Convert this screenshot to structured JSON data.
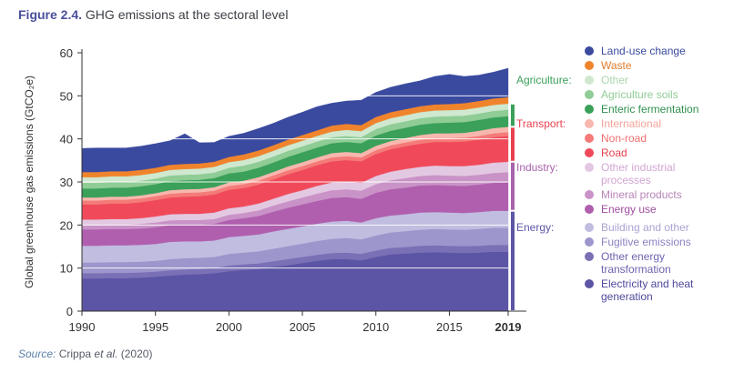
{
  "figure": {
    "number": "Figure 2.4.",
    "title": "GHG emissions at the sectoral level",
    "source_label": "Source:",
    "source_author": "Crippa",
    "source_etal": "et al.",
    "source_year": "(2020)"
  },
  "chart_data": {
    "type": "area",
    "stacked": true,
    "ylabel": "Global greenhouse gas emissions (GtCO₂e)",
    "xlabel": "",
    "ylim": [
      0,
      60
    ],
    "xlim": [
      1990,
      2019
    ],
    "yticks": [
      0,
      10,
      20,
      30,
      40,
      50,
      60
    ],
    "xticks": [
      1990,
      1995,
      2000,
      2005,
      2010,
      2015,
      2019
    ],
    "xtick_labels": [
      "1990",
      "1995",
      "2000",
      "2005",
      "2010",
      "2015",
      "2019"
    ],
    "x": [
      1990,
      1991,
      1992,
      1993,
      1994,
      1995,
      1996,
      1997,
      1998,
      1999,
      2000,
      2001,
      2002,
      2003,
      2004,
      2005,
      2006,
      2007,
      2008,
      2009,
      2010,
      2011,
      2012,
      2013,
      2014,
      2015,
      2016,
      2017,
      2018,
      2019
    ],
    "series": [
      {
        "name": "Electricity and heat generation",
        "group": "Energy",
        "color": "#5c55a5",
        "values": [
          7.6,
          7.6,
          7.7,
          7.7,
          7.8,
          8.0,
          8.3,
          8.5,
          8.6,
          8.8,
          9.3,
          9.6,
          9.8,
          10.3,
          10.7,
          11.2,
          11.7,
          12.1,
          12.1,
          11.8,
          12.6,
          13.2,
          13.4,
          13.6,
          13.7,
          13.6,
          13.5,
          13.6,
          13.8,
          13.8
        ]
      },
      {
        "name": "Other energy transformation",
        "group": "Energy",
        "color": "#7a70b6",
        "values": [
          1.2,
          1.2,
          1.2,
          1.2,
          1.2,
          1.2,
          1.2,
          1.2,
          1.2,
          1.2,
          1.3,
          1.3,
          1.3,
          1.3,
          1.4,
          1.4,
          1.4,
          1.4,
          1.5,
          1.5,
          1.5,
          1.5,
          1.5,
          1.6,
          1.6,
          1.6,
          1.6,
          1.6,
          1.6,
          1.6
        ]
      },
      {
        "name": "Fugitive emissions",
        "group": "Energy",
        "color": "#9d96cc",
        "values": [
          2.5,
          2.5,
          2.5,
          2.5,
          2.5,
          2.5,
          2.6,
          2.6,
          2.6,
          2.6,
          2.7,
          2.7,
          2.8,
          2.9,
          3.0,
          3.1,
          3.2,
          3.3,
          3.4,
          3.4,
          3.5,
          3.6,
          3.7,
          3.7,
          3.8,
          3.8,
          3.8,
          3.9,
          4.0,
          4.0
        ]
      },
      {
        "name": "Building and other",
        "group": "Energy",
        "color": "#c1bde0",
        "values": [
          3.9,
          3.9,
          3.9,
          3.9,
          3.9,
          3.9,
          4.0,
          3.9,
          3.8,
          3.8,
          3.9,
          3.9,
          3.9,
          4.0,
          4.0,
          4.0,
          4.0,
          4.0,
          4.0,
          3.9,
          4.0,
          3.9,
          3.9,
          4.0,
          3.9,
          3.9,
          3.9,
          3.9,
          3.9,
          3.9
        ]
      },
      {
        "name": "Energy use",
        "group": "Industry",
        "color": "#b05fae",
        "values": [
          3.8,
          3.8,
          3.8,
          3.8,
          3.8,
          3.9,
          3.9,
          3.9,
          3.9,
          3.9,
          4.0,
          4.1,
          4.3,
          4.6,
          4.9,
          5.1,
          5.3,
          5.5,
          5.5,
          5.5,
          5.9,
          6.1,
          6.2,
          6.3,
          6.3,
          6.3,
          6.3,
          6.4,
          6.5,
          6.6
        ]
      },
      {
        "name": "Mineral products",
        "group": "Industry",
        "color": "#c993c7",
        "values": [
          1.0,
          1.0,
          1.0,
          1.0,
          1.1,
          1.1,
          1.1,
          1.1,
          1.1,
          1.1,
          1.2,
          1.2,
          1.3,
          1.4,
          1.5,
          1.6,
          1.7,
          1.8,
          1.8,
          1.9,
          2.0,
          2.1,
          2.2,
          2.2,
          2.3,
          2.3,
          2.3,
          2.3,
          2.3,
          2.4
        ]
      },
      {
        "name": "Other industrial processes",
        "group": "Industry",
        "color": "#e3c8e2",
        "values": [
          1.3,
          1.3,
          1.3,
          1.3,
          1.3,
          1.4,
          1.4,
          1.4,
          1.4,
          1.5,
          1.5,
          1.5,
          1.6,
          1.6,
          1.7,
          1.7,
          1.8,
          1.8,
          1.8,
          1.8,
          1.9,
          2.0,
          2.1,
          2.1,
          2.2,
          2.2,
          2.3,
          2.3,
          2.4,
          2.4
        ]
      },
      {
        "name": "Road",
        "group": "Transport",
        "color": "#f04a5a",
        "values": [
          3.5,
          3.5,
          3.6,
          3.6,
          3.7,
          3.8,
          3.9,
          4.0,
          4.1,
          4.2,
          4.3,
          4.3,
          4.4,
          4.5,
          4.6,
          4.7,
          4.8,
          4.9,
          5.0,
          5.0,
          5.1,
          5.2,
          5.3,
          5.4,
          5.5,
          5.6,
          5.7,
          5.8,
          5.9,
          6.0
        ]
      },
      {
        "name": "Non-road",
        "group": "Transport",
        "color": "#f47b78",
        "values": [
          0.9,
          0.9,
          0.9,
          0.9,
          0.9,
          0.9,
          0.9,
          0.9,
          0.9,
          0.9,
          0.9,
          0.9,
          0.9,
          0.9,
          0.9,
          0.9,
          0.9,
          0.9,
          0.9,
          0.9,
          0.9,
          0.9,
          0.9,
          0.9,
          0.9,
          0.9,
          0.9,
          0.9,
          0.9,
          0.9
        ]
      },
      {
        "name": "International",
        "group": "Transport",
        "color": "#f8b7ae",
        "values": [
          0.7,
          0.7,
          0.7,
          0.7,
          0.7,
          0.7,
          0.8,
          0.8,
          0.8,
          0.8,
          0.8,
          0.8,
          0.8,
          0.8,
          0.9,
          0.9,
          0.9,
          1.0,
          1.0,
          1.0,
          1.0,
          1.0,
          1.0,
          1.1,
          1.1,
          1.1,
          1.1,
          1.2,
          1.2,
          1.2
        ]
      },
      {
        "name": "Enteric fermentation",
        "group": "Agriculture",
        "color": "#3aa05a",
        "values": [
          2.1,
          2.1,
          2.1,
          2.1,
          2.1,
          2.1,
          2.1,
          2.1,
          2.1,
          2.1,
          2.1,
          2.1,
          2.2,
          2.2,
          2.2,
          2.3,
          2.3,
          2.3,
          2.3,
          2.3,
          2.4,
          2.4,
          2.4,
          2.4,
          2.4,
          2.5,
          2.5,
          2.5,
          2.5,
          2.5
        ]
      },
      {
        "name": "Agriculture soils",
        "group": "Agriculture",
        "color": "#8fcc96",
        "values": [
          1.3,
          1.3,
          1.3,
          1.3,
          1.3,
          1.3,
          1.3,
          1.3,
          1.3,
          1.3,
          1.3,
          1.4,
          1.4,
          1.4,
          1.4,
          1.4,
          1.4,
          1.4,
          1.4,
          1.4,
          1.5,
          1.5,
          1.5,
          1.5,
          1.5,
          1.5,
          1.5,
          1.5,
          1.5,
          1.5
        ]
      },
      {
        "name": "Other",
        "group": "Agriculture",
        "color": "#cfe8cf",
        "values": [
          1.3,
          1.3,
          1.3,
          1.3,
          1.3,
          1.3,
          1.3,
          1.3,
          1.3,
          1.3,
          1.3,
          1.3,
          1.3,
          1.3,
          1.3,
          1.3,
          1.3,
          1.3,
          1.4,
          1.4,
          1.4,
          1.4,
          1.4,
          1.4,
          1.4,
          1.4,
          1.4,
          1.4,
          1.4,
          1.4
        ]
      },
      {
        "name": "Waste",
        "group": "",
        "color": "#f0842c",
        "values": [
          1.2,
          1.2,
          1.2,
          1.2,
          1.2,
          1.2,
          1.2,
          1.2,
          1.2,
          1.2,
          1.2,
          1.3,
          1.3,
          1.3,
          1.3,
          1.3,
          1.3,
          1.4,
          1.4,
          1.4,
          1.4,
          1.4,
          1.4,
          1.4,
          1.4,
          1.4,
          1.5,
          1.5,
          1.5,
          1.5
        ]
      },
      {
        "name": "Land-use change",
        "group": "",
        "color": "#3a4a9f",
        "values": [
          5.5,
          5.6,
          5.4,
          5.4,
          5.5,
          5.6,
          5.6,
          7.0,
          4.8,
          4.5,
          4.8,
          4.9,
          5.1,
          5.1,
          5.2,
          5.3,
          5.5,
          5.2,
          5.3,
          5.8,
          5.7,
          5.8,
          5.9,
          5.9,
          6.5,
          6.9,
          6.2,
          6.0,
          6.1,
          6.7
        ]
      }
    ],
    "legend_groups": [
      {
        "label": "",
        "color": "#333333",
        "items": [
          "Land-use change",
          "Waste"
        ]
      },
      {
        "label": "Agriculture:",
        "color": "#3aa05a",
        "items": [
          "Other",
          "Agriculture soils",
          "Enteric fermentation"
        ]
      },
      {
        "label": "Transport:",
        "color": "#e8414f",
        "items": [
          "International",
          "Non-road",
          "Road"
        ]
      },
      {
        "label": "Industry:",
        "color": "#a863ad",
        "items": [
          "Other industrial processes",
          "Mineral products",
          "Energy use"
        ]
      },
      {
        "label": "Energy:",
        "color": "#5c55a5",
        "items": [
          "Building and other",
          "Fugitive emissions",
          "Other energy transformation",
          "Electricity and heat generation"
        ]
      }
    ],
    "legend_text_colors": {
      "Land-use change": "#3a4a9f",
      "Waste": "#e07a2a",
      "Other": "#a9d6ad",
      "Agriculture soils": "#8fcc96",
      "Enteric fermentation": "#2f8f4e",
      "International": "#f2a39a",
      "Non-road": "#ef6f6f",
      "Road": "#e8414f",
      "Other industrial processes": "#d2a6d2",
      "Mineral products": "#b785b8",
      "Energy use": "#a04f9f",
      "Building and other": "#a9a4d2",
      "Fugitive emissions": "#8a83c2",
      "Other energy transformation": "#6c64b0",
      "Electricity and heat generation": "#4e489b"
    },
    "legend_display": {
      "Other industrial processes": [
        "Other industrial",
        "processes"
      ],
      "Other energy transformation": [
        "Other energy",
        "transformation"
      ],
      "Electricity and heat generation": [
        "Electricity and heat",
        "generation"
      ]
    }
  }
}
